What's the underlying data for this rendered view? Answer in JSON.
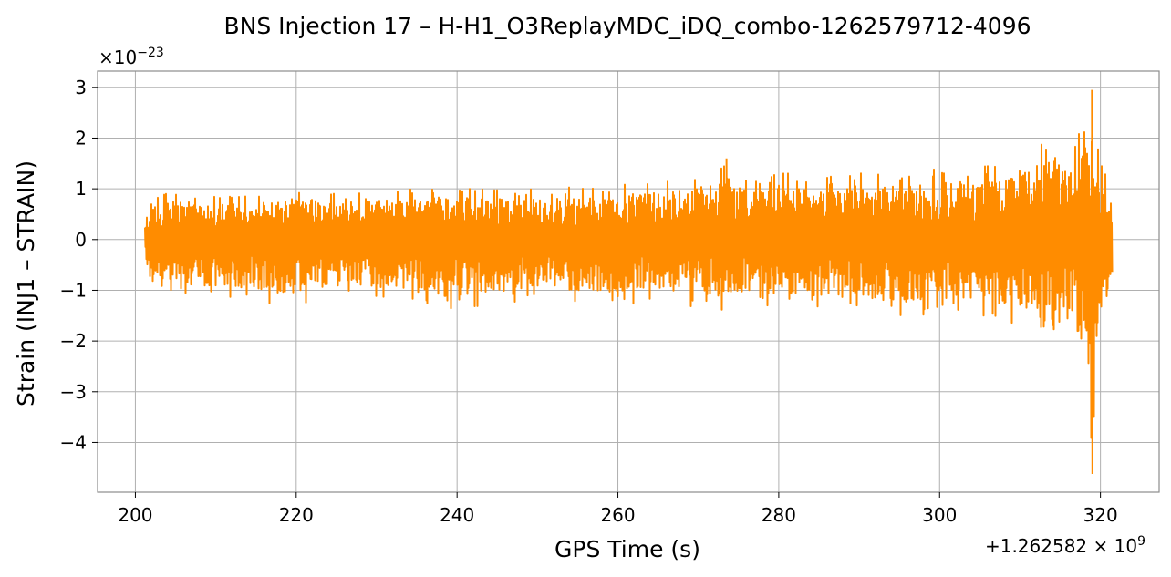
{
  "chart_data": {
    "type": "line",
    "title": "BNS Injection 17 – H-H1_O3ReplayMDC_iDQ_combo-1262579712-4096",
    "xlabel": "GPS Time (s)",
    "ylabel": "Strain (INJ1 – STRAIN)",
    "x_offset_label": "+1.262582 × 10",
    "x_offset_exponent": "9",
    "y_scale_label": "×10",
    "y_scale_exponent": "−23",
    "xlim": [
      195.3,
      327.3
    ],
    "ylim": [
      -4.98,
      3.32
    ],
    "x_ticks": [
      200,
      220,
      240,
      260,
      280,
      300,
      320
    ],
    "x_tick_labels": [
      "200",
      "220",
      "240",
      "260",
      "280",
      "300",
      "320"
    ],
    "y_ticks": [
      3,
      2,
      1,
      0,
      -1,
      -2,
      -3,
      -4
    ],
    "y_tick_labels": [
      "3",
      "2",
      "1",
      "0",
      "−1",
      "−2",
      "−3",
      "−4"
    ],
    "grid": true,
    "line_color": "#ff8c00",
    "series": [
      {
        "x_range": [
          201.2,
          321.5
        ],
        "envelope": [
          {
            "x": 201.2,
            "upper": 0.45,
            "lower": -0.5
          },
          {
            "x": 202.0,
            "upper": 0.9,
            "lower": -0.85
          },
          {
            "x": 205.0,
            "upper": 0.95,
            "lower": -1.1
          },
          {
            "x": 210.0,
            "upper": 0.9,
            "lower": -1.15
          },
          {
            "x": 215.0,
            "upper": 0.95,
            "lower": -1.2
          },
          {
            "x": 218.0,
            "upper": 1.0,
            "lower": -1.35
          },
          {
            "x": 225.0,
            "upper": 1.0,
            "lower": -1.15
          },
          {
            "x": 230.0,
            "upper": 1.05,
            "lower": -1.2
          },
          {
            "x": 235.0,
            "upper": 1.0,
            "lower": -1.2
          },
          {
            "x": 238.0,
            "upper": 1.05,
            "lower": -1.4
          },
          {
            "x": 245.0,
            "upper": 1.0,
            "lower": -1.3
          },
          {
            "x": 250.0,
            "upper": 1.0,
            "lower": -1.2
          },
          {
            "x": 255.0,
            "upper": 1.05,
            "lower": -1.25
          },
          {
            "x": 260.0,
            "upper": 1.1,
            "lower": -1.3
          },
          {
            "x": 265.0,
            "upper": 1.15,
            "lower": -1.3
          },
          {
            "x": 270.0,
            "upper": 1.3,
            "lower": -1.35
          },
          {
            "x": 273.5,
            "upper": 1.6,
            "lower": -1.4
          },
          {
            "x": 276.0,
            "upper": 1.2,
            "lower": -1.3
          },
          {
            "x": 280.0,
            "upper": 1.35,
            "lower": -1.35
          },
          {
            "x": 285.0,
            "upper": 1.2,
            "lower": -1.4
          },
          {
            "x": 290.0,
            "upper": 1.4,
            "lower": -1.45
          },
          {
            "x": 295.0,
            "upper": 1.3,
            "lower": -1.55
          },
          {
            "x": 300.0,
            "upper": 1.4,
            "lower": -1.45
          },
          {
            "x": 305.0,
            "upper": 1.45,
            "lower": -1.5
          },
          {
            "x": 310.0,
            "upper": 1.55,
            "lower": -1.7
          },
          {
            "x": 313.0,
            "upper": 2.05,
            "lower": -1.8
          },
          {
            "x": 316.0,
            "upper": 2.0,
            "lower": -1.75
          },
          {
            "x": 317.5,
            "upper": 2.15,
            "lower": -1.95
          },
          {
            "x": 318.5,
            "upper": 2.5,
            "lower": -2.5
          },
          {
            "x": 319.0,
            "upper": 2.95,
            "lower": -4.62
          },
          {
            "x": 319.6,
            "upper": 1.9,
            "lower": -1.8
          },
          {
            "x": 320.5,
            "upper": 1.35,
            "lower": -1.3
          },
          {
            "x": 321.5,
            "upper": 0.8,
            "lower": -0.85
          }
        ]
      }
    ]
  }
}
